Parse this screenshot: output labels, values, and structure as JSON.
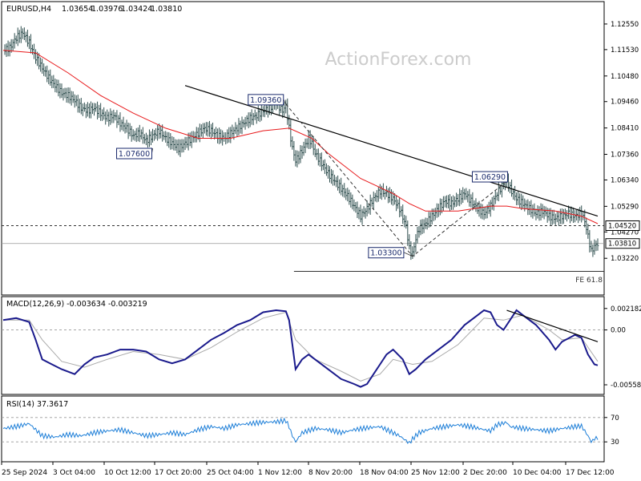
{
  "chart_data": [
    {
      "panel": "price",
      "type": "line",
      "header": {
        "symbol": "EURUSD,H4",
        "open": "1.03654",
        "high": "1.03976",
        "low": "1.03424",
        "close": "1.03810"
      },
      "watermark": "ActionForex.com",
      "x_tick_labels": [
        "25 Sep 2024",
        "3 Oct 04:00",
        "10 Oct 12:00",
        "17 Oct 20:00",
        "25 Oct 04:00",
        "1 Nov 12:00",
        "8 Nov 20:00",
        "18 Nov 04:00",
        "25 Nov 12:00",
        "2 Dec 20:00",
        "10 Dec 04:00",
        "17 Dec 12:00"
      ],
      "y_tick_labels": [
        "1.12550",
        "1.11530",
        "1.10480",
        "1.09460",
        "1.08410",
        "1.07360",
        "1.06340",
        "1.05290",
        "1.04270",
        "1.03220"
      ],
      "ylim": [
        1.0195,
        1.1325
      ],
      "close_series": [
        [
          0,
          1.115
        ],
        [
          2,
          1.116
        ],
        [
          4,
          1.12
        ],
        [
          6,
          1.122
        ],
        [
          8,
          1.118
        ],
        [
          10,
          1.112
        ],
        [
          12,
          1.108
        ],
        [
          14,
          1.104
        ],
        [
          16,
          1.101
        ],
        [
          18,
          1.098
        ],
        [
          20,
          1.097
        ],
        [
          22,
          1.095
        ],
        [
          24,
          1.092
        ],
        [
          26,
          1.091
        ],
        [
          28,
          1.092
        ],
        [
          30,
          1.09
        ],
        [
          32,
          1.088
        ],
        [
          34,
          1.089
        ],
        [
          36,
          1.086
        ],
        [
          38,
          1.084
        ],
        [
          40,
          1.081
        ],
        [
          42,
          1.082
        ],
        [
          44,
          1.079
        ],
        [
          46,
          1.081
        ],
        [
          48,
          1.083
        ],
        [
          50,
          1.08
        ],
        [
          52,
          1.078
        ],
        [
          54,
          1.076
        ],
        [
          56,
          1.078
        ],
        [
          58,
          1.08
        ],
        [
          60,
          1.082
        ],
        [
          62,
          1.084
        ],
        [
          64,
          1.083
        ],
        [
          66,
          1.081
        ],
        [
          68,
          1.08
        ],
        [
          70,
          1.082
        ],
        [
          72,
          1.084
        ],
        [
          74,
          1.086
        ],
        [
          76,
          1.088
        ],
        [
          78,
          1.089
        ],
        [
          80,
          1.091
        ],
        [
          82,
          1.092
        ],
        [
          84,
          1.094
        ],
        [
          86,
          1.091
        ],
        [
          87,
          1.093
        ],
        [
          88,
          1.084
        ],
        [
          89,
          1.076
        ],
        [
          90,
          1.071
        ],
        [
          92,
          1.075
        ],
        [
          94,
          1.08
        ],
        [
          95,
          1.078
        ],
        [
          96,
          1.074
        ],
        [
          98,
          1.07
        ],
        [
          100,
          1.066
        ],
        [
          102,
          1.063
        ],
        [
          104,
          1.06
        ],
        [
          106,
          1.057
        ],
        [
          108,
          1.053
        ],
        [
          110,
          1.049
        ],
        [
          112,
          1.052
        ],
        [
          114,
          1.056
        ],
        [
          116,
          1.059
        ],
        [
          118,
          1.058
        ],
        [
          120,
          1.056
        ],
        [
          122,
          1.052
        ],
        [
          124,
          1.045
        ],
        [
          125,
          1.036
        ],
        [
          126,
          1.034
        ],
        [
          127,
          1.04
        ],
        [
          128,
          1.044
        ],
        [
          130,
          1.046
        ],
        [
          132,
          1.049
        ],
        [
          134,
          1.052
        ],
        [
          136,
          1.055
        ],
        [
          138,
          1.054
        ],
        [
          140,
          1.056
        ],
        [
          142,
          1.058
        ],
        [
          144,
          1.055
        ],
        [
          146,
          1.052
        ],
        [
          148,
          1.05
        ],
        [
          150,
          1.053
        ],
        [
          152,
          1.058
        ],
        [
          154,
          1.062
        ],
        [
          155,
          1.063
        ],
        [
          156,
          1.06
        ],
        [
          158,
          1.056
        ],
        [
          160,
          1.054
        ],
        [
          162,
          1.052
        ],
        [
          164,
          1.05
        ],
        [
          166,
          1.051
        ],
        [
          168,
          1.049
        ],
        [
          170,
          1.048
        ],
        [
          172,
          1.049
        ],
        [
          174,
          1.05
        ],
        [
          176,
          1.049
        ],
        [
          178,
          1.05
        ],
        [
          179,
          1.047
        ],
        [
          180,
          1.041
        ],
        [
          181,
          1.035
        ],
        [
          182,
          1.037
        ],
        [
          183,
          1.038
        ]
      ],
      "sma_series": [
        [
          0,
          1.115
        ],
        [
          10,
          1.114
        ],
        [
          20,
          1.106
        ],
        [
          30,
          1.097
        ],
        [
          40,
          1.09
        ],
        [
          50,
          1.084
        ],
        [
          60,
          1.08
        ],
        [
          70,
          1.08
        ],
        [
          80,
          1.083
        ],
        [
          88,
          1.084
        ],
        [
          95,
          1.08
        ],
        [
          100,
          1.074
        ],
        [
          110,
          1.064
        ],
        [
          120,
          1.058
        ],
        [
          125,
          1.054
        ],
        [
          130,
          1.051
        ],
        [
          140,
          1.051
        ],
        [
          150,
          1.053
        ],
        [
          155,
          1.053
        ],
        [
          160,
          1.052
        ],
        [
          170,
          1.051
        ],
        [
          178,
          1.049
        ],
        [
          183,
          1.046
        ]
      ],
      "trendline": [
        [
          56,
          1.101
        ],
        [
          183,
          1.049
        ]
      ],
      "dashed_projection": [
        [
          87,
          1.0936
        ],
        [
          126,
          1.033
        ],
        [
          155,
          1.0629
        ]
      ],
      "horizontal_level": 1.0452,
      "current_level": 1.0381,
      "fe_level": 1.027,
      "annotations": [
        {
          "label": "1.09360",
          "x": 87,
          "y": 1.0936
        },
        {
          "label": "1.07600",
          "x": 46,
          "y": 1.076
        },
        {
          "label": "1.06290",
          "x": 155,
          "y": 1.0629
        },
        {
          "label": "1.03300",
          "x": 126,
          "y": 1.033
        }
      ],
      "price_tags": [
        {
          "label": "1.04520",
          "y": 1.0452
        },
        {
          "label": "1.03810",
          "y": 1.0381
        }
      ],
      "fe_label": "FE 61.8"
    },
    {
      "panel": "macd",
      "type": "line",
      "header": "MACD(12,26,9) -0.003634 -0.003219",
      "y_tick_labels": [
        "0.002182",
        "0.00",
        "-0.005584"
      ],
      "ylim": [
        -0.0064,
        0.0029
      ],
      "macd_series": [
        [
          0,
          0.001
        ],
        [
          4,
          0.0012
        ],
        [
          8,
          0.0008
        ],
        [
          10,
          -0.001
        ],
        [
          12,
          -0.003
        ],
        [
          15,
          -0.0035
        ],
        [
          18,
          -0.004
        ],
        [
          22,
          -0.0045
        ],
        [
          25,
          -0.0035
        ],
        [
          28,
          -0.0028
        ],
        [
          32,
          -0.0025
        ],
        [
          36,
          -0.002
        ],
        [
          40,
          -0.002
        ],
        [
          44,
          -0.0022
        ],
        [
          48,
          -0.003
        ],
        [
          52,
          -0.0034
        ],
        [
          56,
          -0.003
        ],
        [
          60,
          -0.002
        ],
        [
          64,
          -0.001
        ],
        [
          68,
          -0.0003
        ],
        [
          72,
          0.0005
        ],
        [
          76,
          0.001
        ],
        [
          80,
          0.0018
        ],
        [
          84,
          0.002
        ],
        [
          87,
          0.0019
        ],
        [
          88,
          0.001
        ],
        [
          89,
          -0.0015
        ],
        [
          90,
          -0.004
        ],
        [
          92,
          -0.003
        ],
        [
          94,
          -0.0025
        ],
        [
          96,
          -0.003
        ],
        [
          100,
          -0.004
        ],
        [
          104,
          -0.005
        ],
        [
          108,
          -0.0055
        ],
        [
          110,
          -0.0058
        ],
        [
          112,
          -0.0055
        ],
        [
          114,
          -0.0045
        ],
        [
          116,
          -0.0035
        ],
        [
          118,
          -0.0025
        ],
        [
          120,
          -0.002
        ],
        [
          123,
          -0.003
        ],
        [
          125,
          -0.0045
        ],
        [
          127,
          -0.004
        ],
        [
          130,
          -0.003
        ],
        [
          134,
          -0.002
        ],
        [
          138,
          -0.001
        ],
        [
          142,
          0.0005
        ],
        [
          146,
          0.0015
        ],
        [
          148,
          0.002
        ],
        [
          150,
          0.0018
        ],
        [
          152,
          0.0005
        ],
        [
          154,
          0.0
        ],
        [
          156,
          0.001
        ],
        [
          158,
          0.002
        ],
        [
          160,
          0.0015
        ],
        [
          164,
          0.0005
        ],
        [
          168,
          -0.001
        ],
        [
          170,
          -0.002
        ],
        [
          172,
          -0.0012
        ],
        [
          176,
          -0.0005
        ],
        [
          178,
          -0.0008
        ],
        [
          180,
          -0.0025
        ],
        [
          182,
          -0.0035
        ],
        [
          183,
          -0.0036
        ]
      ],
      "signal_series": [
        [
          0,
          0.001
        ],
        [
          8,
          0.001
        ],
        [
          12,
          -0.001
        ],
        [
          18,
          -0.0032
        ],
        [
          25,
          -0.0038
        ],
        [
          32,
          -0.003
        ],
        [
          40,
          -0.0022
        ],
        [
          48,
          -0.0025
        ],
        [
          56,
          -0.003
        ],
        [
          64,
          -0.0018
        ],
        [
          72,
          -0.0002
        ],
        [
          80,
          0.0012
        ],
        [
          87,
          0.0018
        ],
        [
          90,
          -0.001
        ],
        [
          96,
          -0.003
        ],
        [
          104,
          -0.0042
        ],
        [
          110,
          -0.0052
        ],
        [
          116,
          -0.0045
        ],
        [
          120,
          -0.003
        ],
        [
          126,
          -0.0035
        ],
        [
          132,
          -0.0032
        ],
        [
          140,
          -0.0015
        ],
        [
          148,
          0.0012
        ],
        [
          154,
          0.001
        ],
        [
          160,
          0.0015
        ],
        [
          168,
          0.0
        ],
        [
          172,
          -0.001
        ],
        [
          178,
          -0.0008
        ],
        [
          183,
          -0.0032
        ]
      ],
      "trendline": [
        [
          155,
          0.002
        ],
        [
          183,
          -0.0012
        ]
      ]
    },
    {
      "panel": "rsi",
      "type": "line",
      "header": "RSI(14) 37.3617",
      "y_tick_labels": [
        "70",
        "30"
      ],
      "ylim": [
        0,
        100
      ],
      "levels": [
        70,
        30
      ],
      "rsi_series": [
        [
          0,
          52
        ],
        [
          4,
          55
        ],
        [
          8,
          60
        ],
        [
          10,
          50
        ],
        [
          12,
          40
        ],
        [
          16,
          38
        ],
        [
          20,
          42
        ],
        [
          24,
          40
        ],
        [
          28,
          45
        ],
        [
          32,
          48
        ],
        [
          36,
          50
        ],
        [
          40,
          45
        ],
        [
          44,
          40
        ],
        [
          48,
          42
        ],
        [
          52,
          45
        ],
        [
          56,
          42
        ],
        [
          60,
          50
        ],
        [
          64,
          55
        ],
        [
          68,
          52
        ],
        [
          72,
          58
        ],
        [
          76,
          60
        ],
        [
          80,
          62
        ],
        [
          84,
          63
        ],
        [
          87,
          65
        ],
        [
          88,
          55
        ],
        [
          89,
          40
        ],
        [
          90,
          30
        ],
        [
          92,
          45
        ],
        [
          96,
          52
        ],
        [
          100,
          50
        ],
        [
          104,
          45
        ],
        [
          108,
          50
        ],
        [
          112,
          53
        ],
        [
          116,
          55
        ],
        [
          118,
          50
        ],
        [
          120,
          45
        ],
        [
          122,
          40
        ],
        [
          124,
          32
        ],
        [
          125,
          28
        ],
        [
          126,
          35
        ],
        [
          128,
          45
        ],
        [
          132,
          52
        ],
        [
          136,
          55
        ],
        [
          140,
          58
        ],
        [
          144,
          55
        ],
        [
          148,
          50
        ],
        [
          150,
          48
        ],
        [
          152,
          58
        ],
        [
          155,
          62
        ],
        [
          156,
          55
        ],
        [
          160,
          52
        ],
        [
          164,
          50
        ],
        [
          168,
          48
        ],
        [
          172,
          52
        ],
        [
          176,
          55
        ],
        [
          178,
          56
        ],
        [
          180,
          40
        ],
        [
          181,
          30
        ],
        [
          182,
          35
        ],
        [
          183,
          37
        ]
      ]
    }
  ]
}
